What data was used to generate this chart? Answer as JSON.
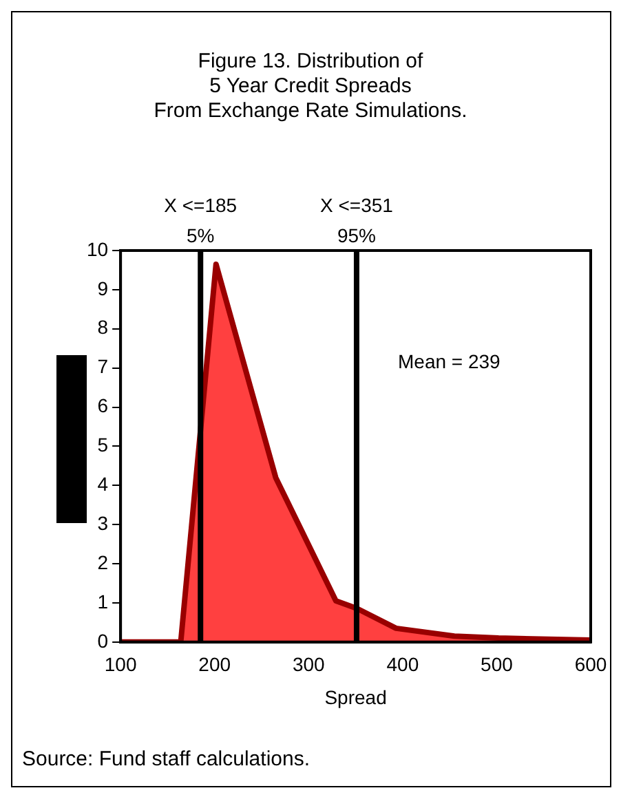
{
  "chart_data": {
    "type": "area",
    "title": "Figure 13. Distribution of\n5 Year Credit Spreads\nFrom Exchange Rate Simulations.",
    "xlabel": "Spread",
    "x": [
      100,
      164,
      201.5,
      265,
      329,
      352,
      393,
      455,
      502,
      600
    ],
    "series": [
      {
        "color": "#990000",
        "values": [
          0,
          0,
          9.65,
          4.2,
          1.05,
          0.85,
          0.35,
          0.15,
          0.1,
          0.05
        ]
      }
    ],
    "xlim": [
      100,
      600
    ],
    "xticks": [
      100,
      200,
      300,
      400,
      500,
      600
    ],
    "ylim": [
      0,
      10
    ],
    "yticks": [
      0,
      1,
      2,
      3,
      4,
      5,
      6,
      7,
      8,
      9,
      10
    ],
    "grid": false,
    "legend": false,
    "marker": "none",
    "ref_lines": [
      {
        "axis": "x",
        "value": 185,
        "label": "X <=185\n5%",
        "color": "#000000"
      },
      {
        "axis": "x",
        "value": 351,
        "label": "X <=351\n95%",
        "color": "#000000"
      }
    ],
    "annotations": [
      "Mean = 239",
      "Source: Fund staff calculations."
    ]
  }
}
